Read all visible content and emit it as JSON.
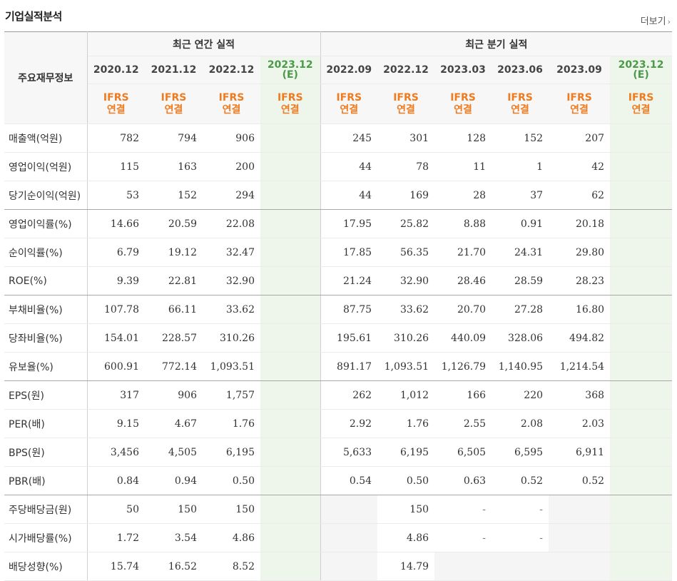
{
  "title": "기업실적분석",
  "more_label": "더보기",
  "more_arrow": "›",
  "row_header_label": "주요재무정보",
  "annual_group_label": "최근 연간 실적",
  "quarter_group_label": "최근 분기 실적",
  "ifrs_label": "IFRS",
  "consolidated_label": "연결",
  "columns": [
    {
      "date": "2020.12",
      "est": ""
    },
    {
      "date": "2021.12",
      "est": ""
    },
    {
      "date": "2022.12",
      "est": ""
    },
    {
      "date": "2023.12",
      "est": "(E)"
    },
    {
      "date": "2022.09",
      "est": ""
    },
    {
      "date": "2022.12",
      "est": ""
    },
    {
      "date": "2023.03",
      "est": ""
    },
    {
      "date": "2023.06",
      "est": ""
    },
    {
      "date": "2023.09",
      "est": ""
    },
    {
      "date": "2023.12",
      "est": "(E)"
    }
  ],
  "rows": [
    {
      "label": "매출액(억원)",
      "values": [
        "782",
        "794",
        "906",
        "",
        "245",
        "301",
        "128",
        "152",
        "207",
        ""
      ]
    },
    {
      "label": "영업이익(억원)",
      "values": [
        "115",
        "163",
        "200",
        "",
        "44",
        "78",
        "11",
        "1",
        "42",
        ""
      ]
    },
    {
      "label": "당기순이익(억원)",
      "values": [
        "53",
        "152",
        "294",
        "",
        "44",
        "169",
        "28",
        "37",
        "62",
        ""
      ]
    },
    {
      "label": "영업이익률(%)",
      "values": [
        "14.66",
        "20.59",
        "22.08",
        "",
        "17.95",
        "25.82",
        "8.88",
        "0.91",
        "20.18",
        ""
      ]
    },
    {
      "label": "순이익률(%)",
      "values": [
        "6.79",
        "19.12",
        "32.47",
        "",
        "17.85",
        "56.35",
        "21.70",
        "24.31",
        "29.80",
        ""
      ]
    },
    {
      "label": "ROE(%)",
      "values": [
        "9.39",
        "22.81",
        "32.90",
        "",
        "21.24",
        "32.90",
        "28.46",
        "28.59",
        "28.23",
        ""
      ]
    },
    {
      "label": "부채비율(%)",
      "values": [
        "107.78",
        "66.11",
        "33.62",
        "",
        "87.75",
        "33.62",
        "20.70",
        "27.28",
        "16.80",
        ""
      ]
    },
    {
      "label": "당좌비율(%)",
      "values": [
        "154.01",
        "228.57",
        "310.26",
        "",
        "195.61",
        "310.26",
        "440.09",
        "328.06",
        "494.82",
        ""
      ]
    },
    {
      "label": "유보율(%)",
      "values": [
        "600.91",
        "772.14",
        "1,093.51",
        "",
        "891.17",
        "1,093.51",
        "1,126.79",
        "1,140.95",
        "1,214.54",
        ""
      ]
    },
    {
      "label": "EPS(원)",
      "values": [
        "317",
        "906",
        "1,757",
        "",
        "262",
        "1,012",
        "166",
        "220",
        "368",
        ""
      ]
    },
    {
      "label": "PER(배)",
      "values": [
        "9.15",
        "4.67",
        "1.76",
        "",
        "2.92",
        "1.76",
        "2.55",
        "2.08",
        "2.03",
        ""
      ]
    },
    {
      "label": "BPS(원)",
      "values": [
        "3,456",
        "4,505",
        "6,195",
        "",
        "5,633",
        "6,195",
        "6,505",
        "6,595",
        "6,911",
        ""
      ]
    },
    {
      "label": "PBR(배)",
      "values": [
        "0.84",
        "0.94",
        "0.50",
        "",
        "0.54",
        "0.50",
        "0.63",
        "0.52",
        "0.52",
        ""
      ]
    },
    {
      "label": "주당배당금(원)",
      "values": [
        "50",
        "150",
        "150",
        "",
        "",
        "150",
        "-",
        "-",
        "",
        ""
      ]
    },
    {
      "label": "시가배당률(%)",
      "values": [
        "1.72",
        "3.54",
        "4.86",
        "",
        "",
        "4.86",
        "-",
        "-",
        "",
        ""
      ]
    },
    {
      "label": "배당성향(%)",
      "values": [
        "15.74",
        "16.52",
        "8.52",
        "",
        "",
        "14.79",
        "",
        "",
        "",
        ""
      ]
    }
  ],
  "group_ends": [
    2,
    5,
    8,
    12
  ],
  "grey_cells": [
    [
      13,
      4
    ],
    [
      13,
      8
    ],
    [
      14,
      4
    ],
    [
      14,
      8
    ],
    [
      15,
      4
    ],
    [
      15,
      6
    ],
    [
      15,
      7
    ],
    [
      15,
      8
    ]
  ]
}
